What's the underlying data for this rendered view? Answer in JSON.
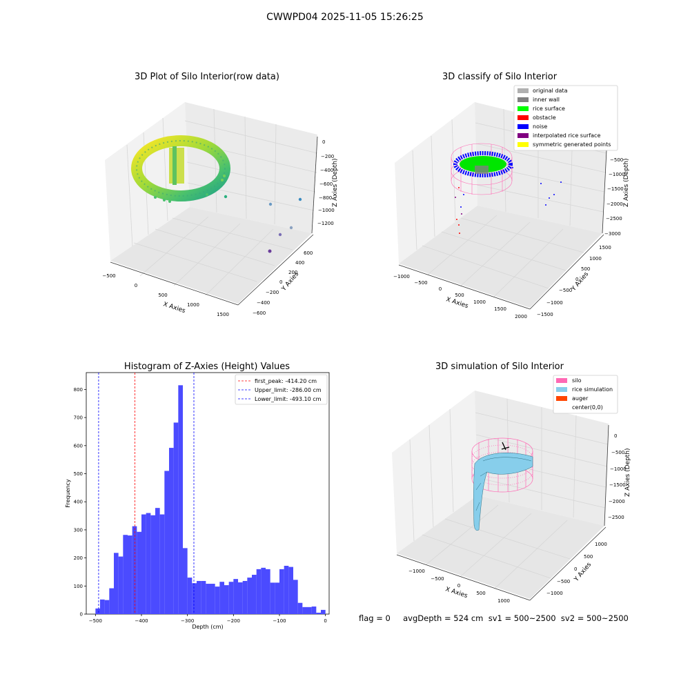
{
  "suptitle": "CWWPD04 2025-11-05 15:26:25",
  "status_line": "flag = 0     avgDepth = 524 cm  sv1 = 500~2500  sv2 = 500~2500",
  "colors": {
    "hist_bar": "#4b4bff",
    "first_peak": "#ff0000",
    "limit": "#0000ff",
    "silo": "#ff69b4",
    "rice_sim": "#87ceeb",
    "auger": "#ff4500",
    "original": "#b0b0b0",
    "inner_wall": "#808080",
    "rice_surface": "#00ff00",
    "obstacle": "#ff0000",
    "noise": "#0000ff",
    "interp": "#800080",
    "symmetric": "#ffff00"
  },
  "chart_data": [
    {
      "type": "scatter",
      "projection": "3d",
      "title": "3D Plot of Silo Interior(row data)",
      "xlabel": "X Axies",
      "ylabel": "Y Axies",
      "zlabel": "Z Axies (Depth)",
      "x_ticks": [
        "−500",
        "0",
        "500",
        "1000",
        "1500"
      ],
      "y_ticks": [
        "−600",
        "−400",
        "−200",
        "0",
        "200",
        "400",
        "600"
      ],
      "z_ticks": [
        "0",
        "−200",
        "−400",
        "−600",
        "−800",
        "−1000",
        "−1200"
      ],
      "colormap": "viridis"
    },
    {
      "type": "scatter",
      "projection": "3d",
      "title": "3D classify of Silo Interior",
      "xlabel": "X Axies",
      "ylabel": "Y Axies",
      "zlabel": "Z Axies (Depth)",
      "x_ticks": [
        "−1000",
        "−500",
        "0",
        "500",
        "1000",
        "1500",
        "2000"
      ],
      "y_ticks": [
        "−1500",
        "−1000",
        "−500",
        "0",
        "500",
        "1000",
        "1500"
      ],
      "z_ticks": [
        "−500",
        "−1000",
        "−1500",
        "−2000",
        "−2500",
        "−3000"
      ],
      "legend_position": "top-right",
      "legend": [
        {
          "label": "original data",
          "color": "#b0b0b0"
        },
        {
          "label": "inner wall",
          "color": "#808080"
        },
        {
          "label": "rice surface",
          "color": "#00ff00"
        },
        {
          "label": "obstacle",
          "color": "#ff0000"
        },
        {
          "label": "noise",
          "color": "#0000ff"
        },
        {
          "label": "interpolated rice surface",
          "color": "#800080"
        },
        {
          "label": "symmetric generated points",
          "color": "#ffff00"
        }
      ]
    },
    {
      "type": "bar",
      "title": "Histogram of Z-Axies (Height) Values",
      "xlabel": "Depth (cm)",
      "ylabel": "Frequency",
      "xlim": [
        -520,
        8
      ],
      "ylim": [
        0,
        860
      ],
      "x_ticks": [
        -500,
        -400,
        -300,
        -200,
        -100,
        0
      ],
      "x_tick_labels": [
        "−500",
        "−400",
        "−300",
        "−200",
        "−100",
        "0"
      ],
      "y_ticks": [
        0,
        100,
        200,
        300,
        400,
        500,
        600,
        700,
        800
      ],
      "y_tick_labels": [
        "0",
        "100",
        "200",
        "300",
        "400",
        "500",
        "600",
        "700",
        "800"
      ],
      "bin_start": -500,
      "bin_width": 10,
      "values": [
        20,
        52,
        50,
        92,
        218,
        205,
        282,
        280,
        313,
        293,
        355,
        360,
        352,
        378,
        355,
        510,
        592,
        682,
        815,
        235,
        130,
        110,
        118,
        118,
        108,
        108,
        98,
        115,
        103,
        115,
        125,
        113,
        118,
        130,
        140,
        160,
        165,
        160,
        112,
        112,
        160,
        172,
        168,
        122,
        40,
        25,
        25,
        27,
        5,
        15
      ],
      "lines": [
        {
          "label": "first_peak: -414.20 cm",
          "x": -414.2,
          "color": "#ff0000"
        },
        {
          "label": "Upper_limit: -286.00 cm",
          "x": -286.0,
          "color": "#0000ff"
        },
        {
          "label": "Lower_limit: -493.10 cm",
          "x": -493.1,
          "color": "#0000ff"
        }
      ],
      "legend_position": "top-right"
    },
    {
      "type": "surface",
      "projection": "3d",
      "title": "3D simulation of Silo Interior",
      "xlabel": "X Axies",
      "ylabel": "Y Axies",
      "zlabel": "Z Axies (Depth)",
      "x_ticks": [
        "−1000",
        "−500",
        "0",
        "500",
        "1000"
      ],
      "y_ticks": [
        "−1000",
        "−500",
        "0",
        "500",
        "1000"
      ],
      "z_ticks": [
        "0",
        "−500",
        "−1000",
        "−1500",
        "−2000",
        "−2500"
      ],
      "legend_position": "top-right",
      "legend": [
        {
          "label": "silo",
          "color": "#ff69b4"
        },
        {
          "label": "rice simulation",
          "color": "#87ceeb"
        },
        {
          "label": "auger",
          "color": "#ff4500"
        },
        {
          "label": "center(0,0)",
          "color": "none"
        }
      ]
    }
  ]
}
